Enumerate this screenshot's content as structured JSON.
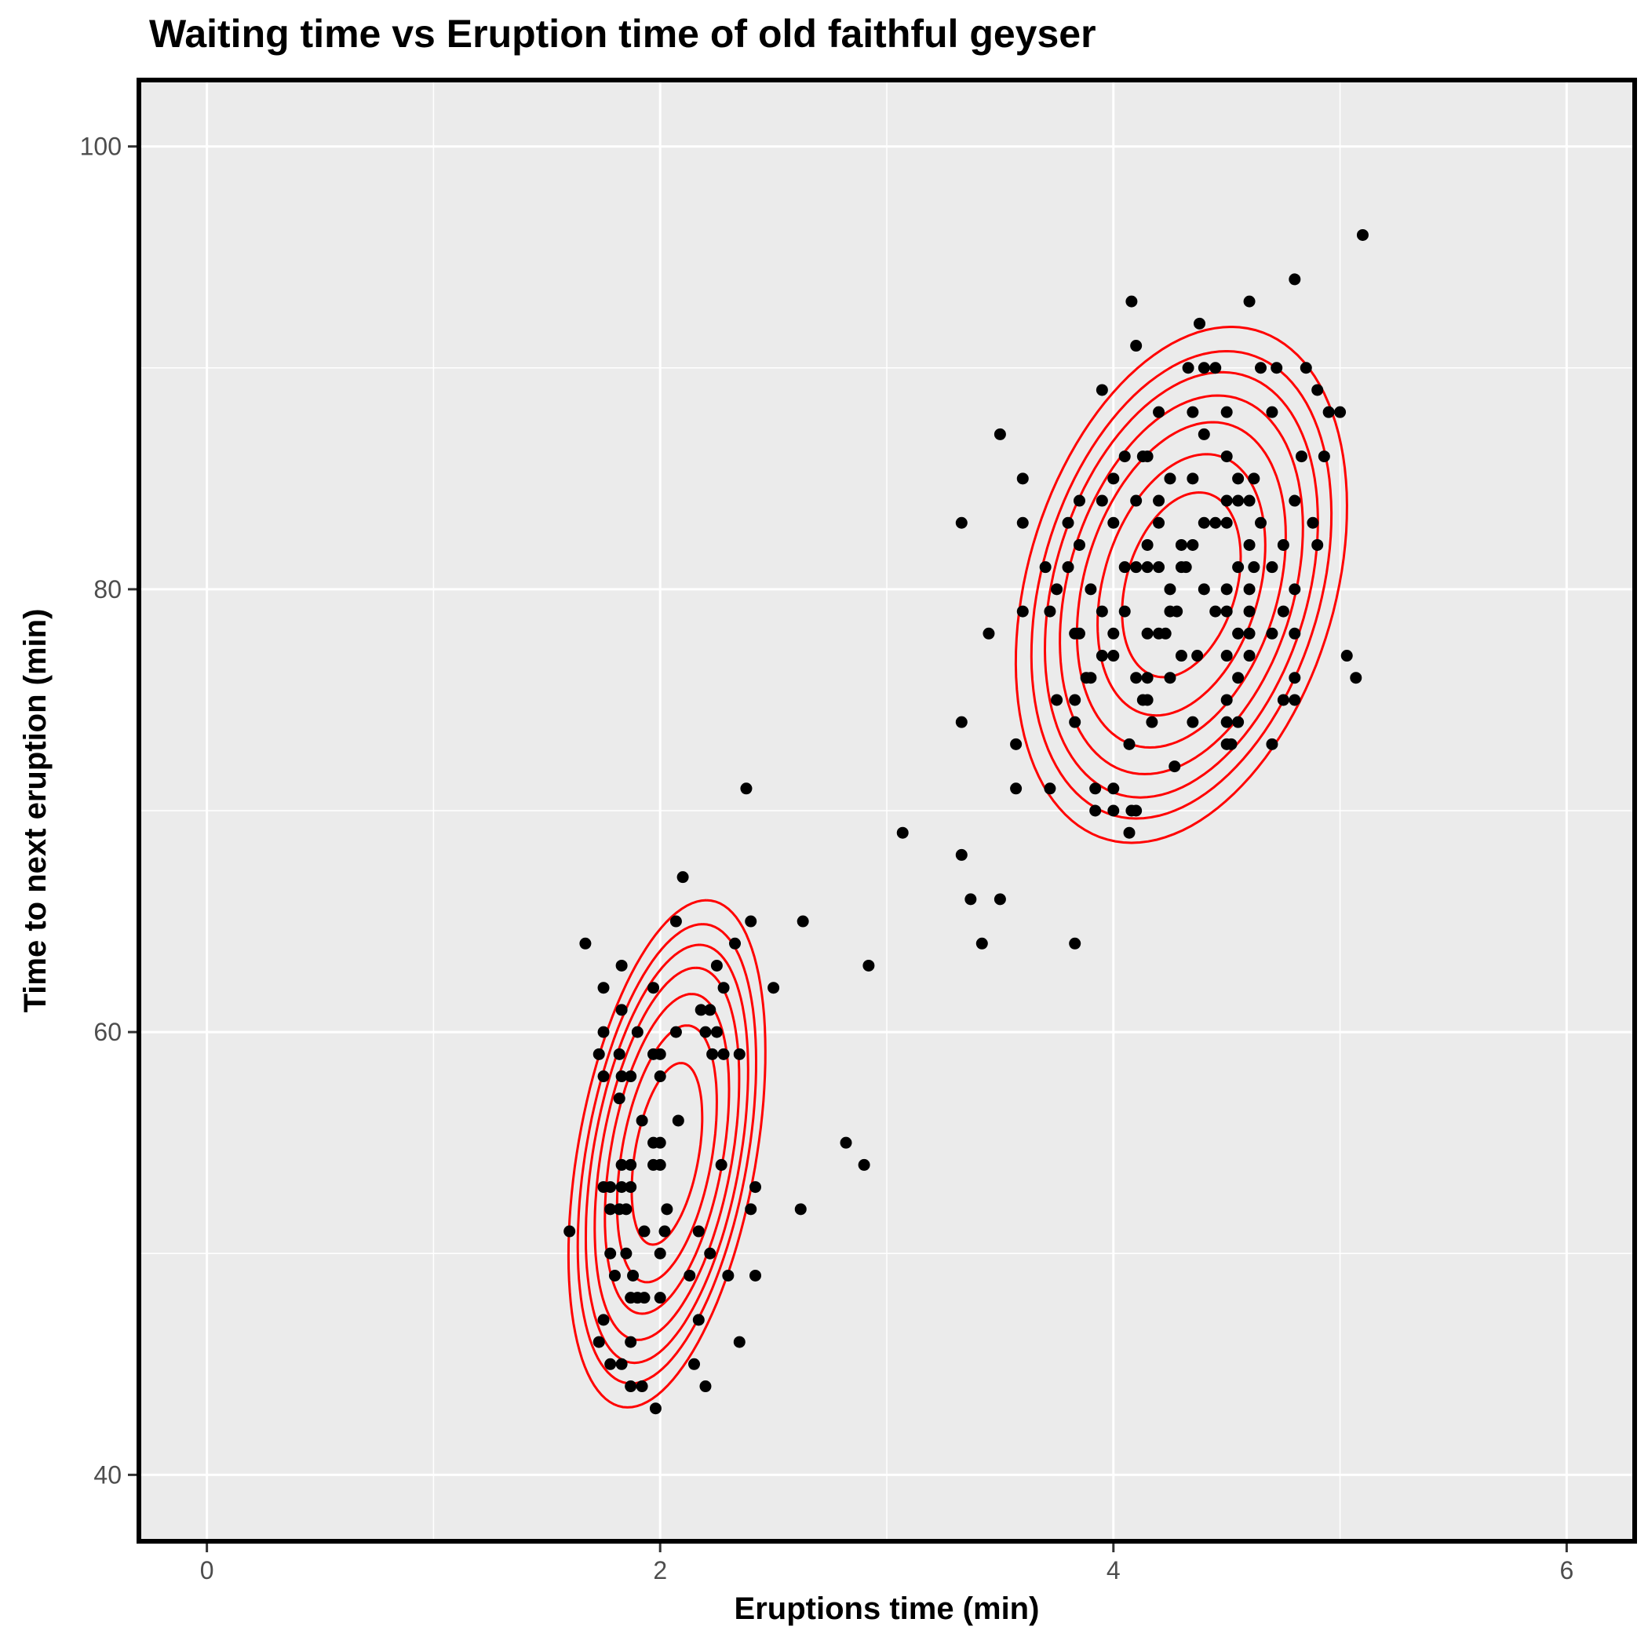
{
  "chart_data": {
    "type": "scatter",
    "title": "Waiting time vs Eruption time of old faithful geyser",
    "xlabel": "Eruptions time (min)",
    "ylabel": "Time to next eruption (min)",
    "xlim": [
      -0.3,
      6.3
    ],
    "ylim": [
      37,
      103
    ],
    "x_ticks": [
      0,
      2,
      4,
      6
    ],
    "y_ticks": [
      40,
      60,
      80,
      100
    ],
    "x_minor": [
      1,
      3,
      5
    ],
    "y_minor": [
      50,
      70,
      90
    ],
    "grid": true,
    "colors": {
      "panel": "#ebebeb",
      "grid": "#ffffff",
      "points": "#000000",
      "contours": "#ff0000",
      "border": "#000000"
    },
    "points": [
      [
        5.1,
        96
      ],
      [
        4.8,
        94
      ],
      [
        4.6,
        93
      ],
      [
        4.08,
        93
      ],
      [
        4.38,
        92
      ],
      [
        4.1,
        91
      ],
      [
        4.33,
        90
      ],
      [
        4.4,
        90
      ],
      [
        4.45,
        90
      ],
      [
        4.65,
        90
      ],
      [
        4.72,
        90
      ],
      [
        4.85,
        90
      ],
      [
        3.95,
        89
      ],
      [
        4.35,
        88
      ],
      [
        4.9,
        89
      ],
      [
        4.95,
        88
      ],
      [
        5.0,
        88
      ],
      [
        4.2,
        88
      ],
      [
        4.5,
        88
      ],
      [
        4.7,
        88
      ],
      [
        3.5,
        87
      ],
      [
        4.4,
        87
      ],
      [
        4.05,
        86
      ],
      [
        4.15,
        86
      ],
      [
        4.13,
        86
      ],
      [
        4.5,
        86
      ],
      [
        4.83,
        86
      ],
      [
        4.93,
        86
      ],
      [
        3.6,
        85
      ],
      [
        4.0,
        85
      ],
      [
        4.35,
        85
      ],
      [
        4.25,
        85
      ],
      [
        4.55,
        85
      ],
      [
        4.62,
        85
      ],
      [
        4.2,
        84
      ],
      [
        3.85,
        84
      ],
      [
        3.95,
        84
      ],
      [
        4.1,
        84
      ],
      [
        4.5,
        84
      ],
      [
        4.55,
        84
      ],
      [
        4.6,
        84
      ],
      [
        4.8,
        84
      ],
      [
        3.33,
        83
      ],
      [
        3.6,
        83
      ],
      [
        3.8,
        83
      ],
      [
        4.0,
        83
      ],
      [
        4.2,
        83
      ],
      [
        4.4,
        83
      ],
      [
        4.45,
        83
      ],
      [
        4.5,
        83
      ],
      [
        4.65,
        83
      ],
      [
        4.88,
        83
      ],
      [
        3.85,
        82
      ],
      [
        4.15,
        82
      ],
      [
        4.35,
        82
      ],
      [
        4.3,
        82
      ],
      [
        4.6,
        82
      ],
      [
        4.75,
        82
      ],
      [
        4.9,
        82
      ],
      [
        3.7,
        81
      ],
      [
        3.8,
        81
      ],
      [
        4.05,
        81
      ],
      [
        4.1,
        81
      ],
      [
        4.15,
        81
      ],
      [
        4.2,
        81
      ],
      [
        4.3,
        81
      ],
      [
        4.32,
        81
      ],
      [
        4.55,
        81
      ],
      [
        4.62,
        81
      ],
      [
        4.7,
        81
      ],
      [
        3.75,
        80
      ],
      [
        3.9,
        80
      ],
      [
        4.25,
        80
      ],
      [
        4.4,
        80
      ],
      [
        4.5,
        80
      ],
      [
        4.6,
        80
      ],
      [
        4.8,
        80
      ],
      [
        3.6,
        79
      ],
      [
        3.72,
        79
      ],
      [
        3.95,
        79
      ],
      [
        4.05,
        79
      ],
      [
        4.25,
        79
      ],
      [
        4.28,
        79
      ],
      [
        4.45,
        79
      ],
      [
        4.5,
        79
      ],
      [
        4.6,
        79
      ],
      [
        4.75,
        79
      ],
      [
        3.45,
        78
      ],
      [
        3.83,
        78
      ],
      [
        3.85,
        78
      ],
      [
        4.0,
        78
      ],
      [
        4.15,
        78
      ],
      [
        4.2,
        78
      ],
      [
        4.23,
        78
      ],
      [
        4.55,
        78
      ],
      [
        4.6,
        78
      ],
      [
        4.7,
        78
      ],
      [
        4.8,
        78
      ],
      [
        3.95,
        77
      ],
      [
        4.0,
        77
      ],
      [
        4.3,
        77
      ],
      [
        4.37,
        77
      ],
      [
        4.5,
        77
      ],
      [
        4.6,
        77
      ],
      [
        5.03,
        77
      ],
      [
        3.88,
        76
      ],
      [
        3.9,
        76
      ],
      [
        4.1,
        76
      ],
      [
        4.15,
        76
      ],
      [
        4.25,
        76
      ],
      [
        4.55,
        76
      ],
      [
        4.8,
        76
      ],
      [
        5.07,
        76
      ],
      [
        3.75,
        75
      ],
      [
        3.83,
        75
      ],
      [
        4.13,
        75
      ],
      [
        4.15,
        75
      ],
      [
        4.5,
        75
      ],
      [
        4.75,
        75
      ],
      [
        4.8,
        75
      ],
      [
        3.33,
        74
      ],
      [
        3.83,
        74
      ],
      [
        4.17,
        74
      ],
      [
        4.35,
        74
      ],
      [
        4.5,
        74
      ],
      [
        4.55,
        74
      ],
      [
        3.57,
        73
      ],
      [
        4.07,
        73
      ],
      [
        4.5,
        73
      ],
      [
        4.52,
        73
      ],
      [
        4.7,
        73
      ],
      [
        4.27,
        72
      ],
      [
        3.57,
        71
      ],
      [
        3.72,
        71
      ],
      [
        3.92,
        71
      ],
      [
        4.0,
        71
      ],
      [
        2.38,
        71
      ],
      [
        3.92,
        70
      ],
      [
        4.0,
        70
      ],
      [
        4.08,
        70
      ],
      [
        4.1,
        70
      ],
      [
        4.07,
        69
      ],
      [
        3.07,
        69
      ],
      [
        3.33,
        68
      ],
      [
        2.1,
        67
      ],
      [
        3.37,
        66
      ],
      [
        3.5,
        66
      ],
      [
        2.07,
        65
      ],
      [
        2.4,
        65
      ],
      [
        2.63,
        65
      ],
      [
        1.67,
        64
      ],
      [
        2.33,
        64
      ],
      [
        3.42,
        64
      ],
      [
        3.83,
        64
      ],
      [
        1.83,
        63
      ],
      [
        2.25,
        63
      ],
      [
        2.92,
        63
      ],
      [
        1.75,
        62
      ],
      [
        1.97,
        62
      ],
      [
        2.28,
        62
      ],
      [
        2.5,
        62
      ],
      [
        1.83,
        61
      ],
      [
        2.18,
        61
      ],
      [
        2.22,
        61
      ],
      [
        1.9,
        60
      ],
      [
        2.07,
        60
      ],
      [
        2.2,
        60
      ],
      [
        2.25,
        60
      ],
      [
        1.75,
        60
      ],
      [
        1.73,
        59
      ],
      [
        1.82,
        59
      ],
      [
        1.97,
        59
      ],
      [
        2.0,
        59
      ],
      [
        2.23,
        59
      ],
      [
        2.28,
        59
      ],
      [
        2.35,
        59
      ],
      [
        1.75,
        58
      ],
      [
        1.83,
        58
      ],
      [
        1.87,
        58
      ],
      [
        2.0,
        58
      ],
      [
        1.82,
        57
      ],
      [
        1.92,
        56
      ],
      [
        2.08,
        56
      ],
      [
        1.97,
        55
      ],
      [
        2.0,
        55
      ],
      [
        2.82,
        55
      ],
      [
        1.83,
        54
      ],
      [
        1.87,
        54
      ],
      [
        1.97,
        54
      ],
      [
        2.0,
        54
      ],
      [
        2.27,
        54
      ],
      [
        2.9,
        54
      ],
      [
        1.75,
        53
      ],
      [
        1.78,
        53
      ],
      [
        1.83,
        53
      ],
      [
        1.87,
        53
      ],
      [
        2.42,
        53
      ],
      [
        1.78,
        52
      ],
      [
        1.82,
        52
      ],
      [
        1.85,
        52
      ],
      [
        2.03,
        52
      ],
      [
        2.4,
        52
      ],
      [
        2.62,
        52
      ],
      [
        1.6,
        51
      ],
      [
        1.93,
        51
      ],
      [
        2.02,
        51
      ],
      [
        2.17,
        51
      ],
      [
        1.78,
        50
      ],
      [
        1.85,
        50
      ],
      [
        2.0,
        50
      ],
      [
        2.22,
        50
      ],
      [
        1.8,
        49
      ],
      [
        1.88,
        49
      ],
      [
        2.13,
        49
      ],
      [
        2.3,
        49
      ],
      [
        2.42,
        49
      ],
      [
        1.87,
        48
      ],
      [
        1.93,
        48
      ],
      [
        2.0,
        48
      ],
      [
        1.9,
        48
      ],
      [
        1.75,
        47
      ],
      [
        2.17,
        47
      ],
      [
        1.73,
        46
      ],
      [
        1.87,
        46
      ],
      [
        2.35,
        46
      ],
      [
        1.78,
        45
      ],
      [
        1.83,
        45
      ],
      [
        2.15,
        45
      ],
      [
        1.87,
        44
      ],
      [
        1.92,
        44
      ],
      [
        2.2,
        44
      ],
      [
        1.98,
        43
      ]
    ],
    "density_peaks": [
      {
        "cx": 2.03,
        "cy": 54.5,
        "sx": 0.22,
        "sy": 5.8,
        "rho": 0.4
      },
      {
        "cx": 4.3,
        "cy": 80.2,
        "sx": 0.37,
        "sy": 5.9,
        "rho": 0.3
      }
    ],
    "contour_levels": [
      0.5,
      1.0,
      1.55,
      2.1,
      2.65,
      3.2,
      3.9
    ]
  }
}
